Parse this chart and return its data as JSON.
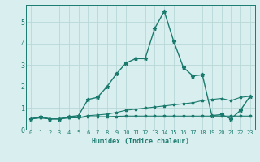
{
  "xlabel": "Humidex (Indice chaleur)",
  "x": [
    0,
    1,
    2,
    3,
    4,
    5,
    6,
    7,
    8,
    9,
    10,
    11,
    12,
    13,
    14,
    15,
    16,
    17,
    18,
    19,
    20,
    21,
    22,
    23
  ],
  "line1": [
    0.5,
    0.55,
    0.5,
    0.5,
    0.55,
    0.55,
    0.6,
    0.6,
    0.6,
    0.62,
    0.63,
    0.63,
    0.63,
    0.63,
    0.63,
    0.63,
    0.63,
    0.63,
    0.63,
    0.63,
    0.63,
    0.63,
    0.63,
    0.63
  ],
  "line2": [
    0.5,
    0.55,
    0.5,
    0.5,
    0.55,
    0.55,
    0.65,
    0.68,
    0.72,
    0.8,
    0.9,
    0.95,
    1.0,
    1.05,
    1.1,
    1.15,
    1.2,
    1.25,
    1.35,
    1.4,
    1.45,
    1.35,
    1.5,
    1.55
  ],
  "line3": [
    0.5,
    0.6,
    0.5,
    0.5,
    0.6,
    0.65,
    1.4,
    1.5,
    2.0,
    2.6,
    3.1,
    3.3,
    3.3,
    4.7,
    5.5,
    4.1,
    2.9,
    2.5,
    2.55,
    0.65,
    0.7,
    0.5,
    0.9,
    1.55
  ],
  "line_color": "#1a7a6e",
  "bg_color": "#d9efef",
  "grid_color": "#b8d8d8",
  "ylim": [
    0,
    5.8
  ],
  "xlim": [
    -0.5,
    23.5
  ],
  "yticks": [
    0,
    1,
    2,
    3,
    4,
    5
  ],
  "xticks": [
    0,
    1,
    2,
    3,
    4,
    5,
    6,
    7,
    8,
    9,
    10,
    11,
    12,
    13,
    14,
    15,
    16,
    17,
    18,
    19,
    20,
    21,
    22,
    23
  ],
  "xlabel_fontsize": 6.0,
  "ytick_fontsize": 6.0,
  "xtick_fontsize": 5.0
}
